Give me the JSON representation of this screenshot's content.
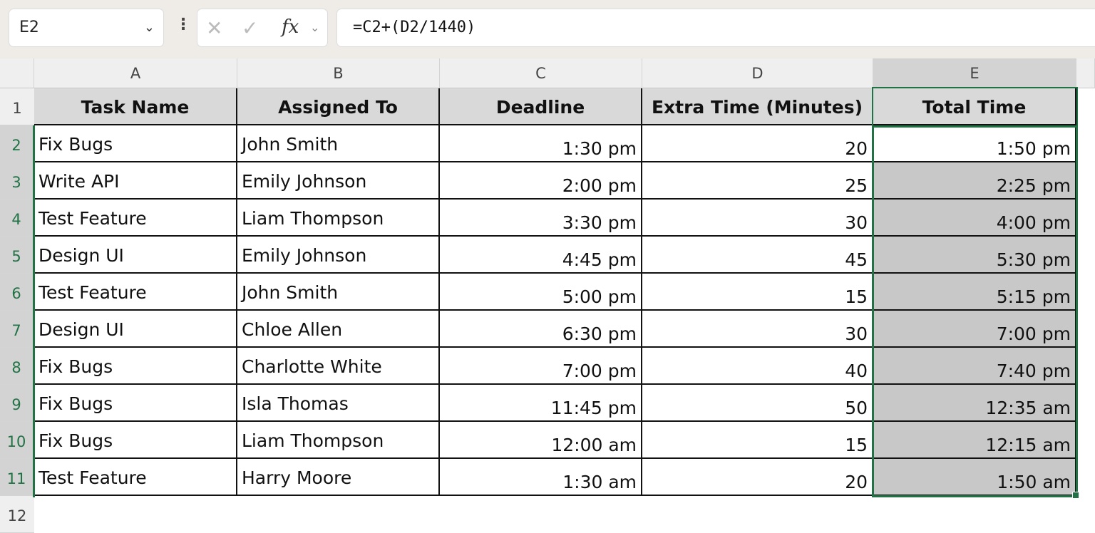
{
  "formula_bar": {
    "name_box": "E2",
    "formula": "=C2+(D2/1440)",
    "cancel_icon": "✕",
    "enter_icon": "✓",
    "fx_label": "fx"
  },
  "columns": [
    "A",
    "B",
    "C",
    "D",
    "E"
  ],
  "row_numbers": [
    "1",
    "2",
    "3",
    "4",
    "5",
    "6",
    "7",
    "8",
    "9",
    "10",
    "11",
    "12"
  ],
  "headers": [
    "Task Name",
    "Assigned To",
    "Deadline",
    "Extra Time (Minutes)",
    "Total Time"
  ],
  "rows": [
    [
      "Fix Bugs",
      "John Smith",
      "1:30 pm",
      "20",
      "1:50 pm"
    ],
    [
      "Write API",
      "Emily Johnson",
      "2:00 pm",
      "25",
      "2:25 pm"
    ],
    [
      "Test Feature",
      "Liam Thompson",
      "3:30 pm",
      "30",
      "4:00 pm"
    ],
    [
      "Design UI",
      "Emily Johnson",
      "4:45 pm",
      "45",
      "5:30 pm"
    ],
    [
      "Test Feature",
      "John Smith",
      "5:00 pm",
      "15",
      "5:15 pm"
    ],
    [
      "Design UI",
      "Chloe Allen",
      "6:30 pm",
      "30",
      "7:00 pm"
    ],
    [
      "Fix Bugs",
      "Charlotte White",
      "7:00 pm",
      "40",
      "7:40 pm"
    ],
    [
      "Fix Bugs",
      "Isla Thomas",
      "11:45 pm",
      "50",
      "12:35 am"
    ],
    [
      "Fix Bugs",
      "Liam Thompson",
      "12:00 am",
      "15",
      "12:15 am"
    ],
    [
      "Test Feature",
      "Harry Moore",
      "1:30 am",
      "20",
      "1:50 am"
    ]
  ],
  "colors": {
    "selection": "#217346",
    "header_fill": "#d9d9d9",
    "selected_fill": "#c8c8c8"
  }
}
